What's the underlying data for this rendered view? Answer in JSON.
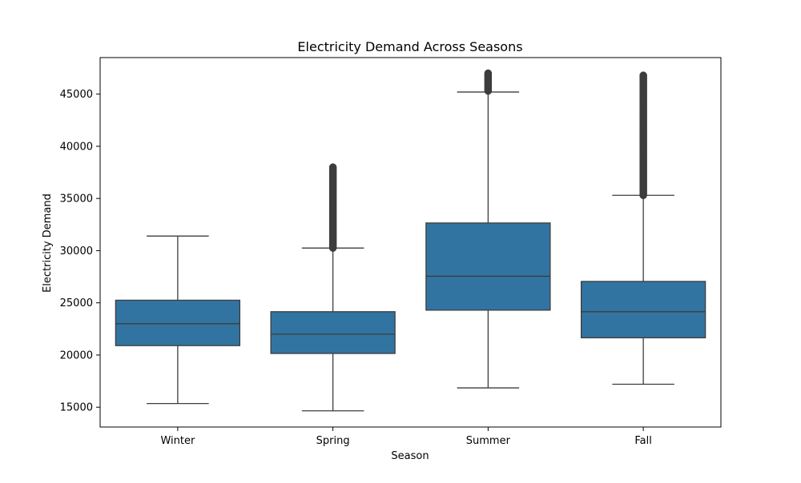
{
  "chart_data": {
    "type": "box",
    "title": "Electricity Demand Across Seasons",
    "xlabel": "Season",
    "ylabel": "Electricity Demand",
    "ylim": [
      13100,
      48500
    ],
    "yticks": [
      15000,
      20000,
      25000,
      30000,
      35000,
      40000,
      45000
    ],
    "grid": false,
    "categories": [
      "Winter",
      "Spring",
      "Summer",
      "Fall"
    ],
    "boxes": [
      {
        "category": "Winter",
        "whisker_low": 15350,
        "q1": 20900,
        "median": 23000,
        "q3": 25250,
        "whisker_high": 31400,
        "outliers_range": null
      },
      {
        "category": "Spring",
        "whisker_low": 14650,
        "q1": 20150,
        "median": 22000,
        "q3": 24150,
        "whisker_high": 30250,
        "outliers_range": [
          30250,
          38000
        ]
      },
      {
        "category": "Summer",
        "whisker_low": 16850,
        "q1": 24300,
        "median": 27550,
        "q3": 32650,
        "whisker_high": 45200,
        "outliers_range": [
          45300,
          47000
        ]
      },
      {
        "category": "Fall",
        "whisker_low": 17200,
        "q1": 21650,
        "median": 24150,
        "q3": 27050,
        "whisker_high": 35300,
        "outliers_range": [
          35300,
          46800
        ]
      }
    ],
    "colors": {
      "box_fill": "#3274a1",
      "line": "#3d3d3d",
      "axis": "#000000"
    }
  }
}
